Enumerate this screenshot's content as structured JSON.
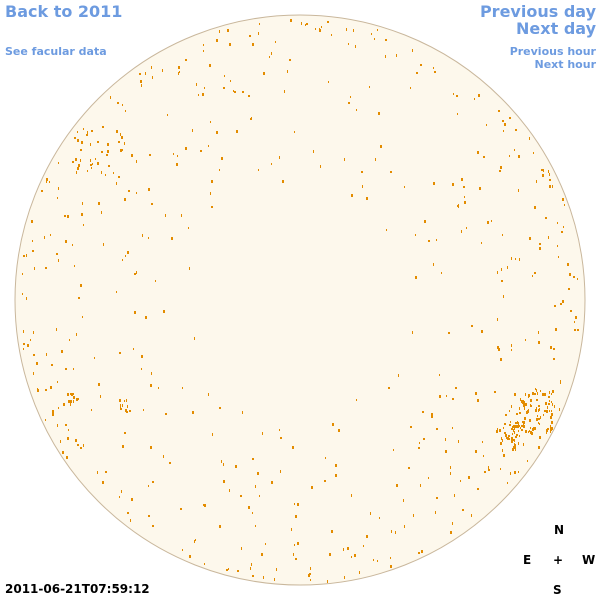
{
  "nav": {
    "back": "Back to 2011",
    "facular": "See facular data",
    "previous_day": "Previous day",
    "next_day": "Next day",
    "previous_hour": "Previous hour",
    "next_hour": "Next hour"
  },
  "timestamp": "2011-06-21T07:59:12",
  "compass": {
    "north": "N",
    "east": "E",
    "center": "+",
    "west": "W",
    "south": "S"
  }
}
